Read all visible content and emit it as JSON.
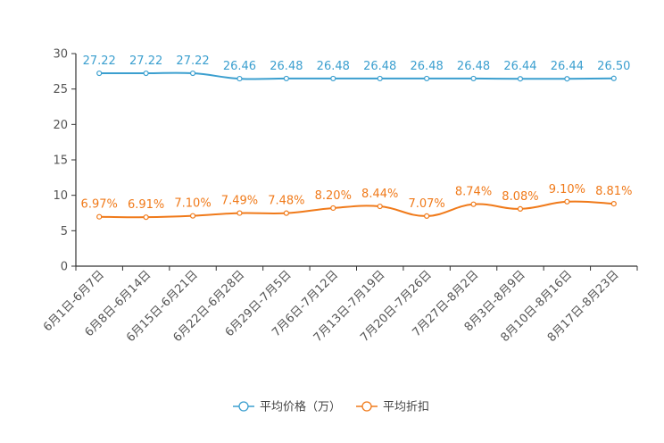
{
  "chart_data": {
    "type": "line",
    "title": "",
    "xlabel": "",
    "ylabel": "",
    "ylim": [
      0,
      30
    ],
    "yticks": [
      0,
      5,
      10,
      15,
      20,
      25,
      30
    ],
    "grid": false,
    "legend_position": "bottom-center",
    "categories": [
      "6月1日-6月7日",
      "6月8日-6月14日",
      "6月15日-6月21日",
      "6月22日-6月28日",
      "6月29日-7月5日",
      "7月6日-7月12日",
      "7月13日-7月19日",
      "7月20日-7月26日",
      "7月27日-8月2日",
      "8月3日-8月9日",
      "8月10日-8月16日",
      "8月17日-8月23日"
    ],
    "series": [
      {
        "name": "平均价格（万）",
        "color": "#3b9fcf",
        "values": [
          27.22,
          27.22,
          27.22,
          26.46,
          26.48,
          26.48,
          26.48,
          26.48,
          26.48,
          26.44,
          26.44,
          26.5
        ],
        "labels": [
          "27.22",
          "27.22",
          "27.22",
          "26.46",
          "26.48",
          "26.48",
          "26.48",
          "26.48",
          "26.48",
          "26.44",
          "26.44",
          "26.50"
        ]
      },
      {
        "name": "平均折扣",
        "color": "#f07a1a",
        "values": [
          6.97,
          6.91,
          7.1,
          7.49,
          7.48,
          8.2,
          8.44,
          7.07,
          8.74,
          8.08,
          9.1,
          8.81
        ],
        "labels": [
          "6.97%",
          "6.91%",
          "7.10%",
          "7.49%",
          "7.48%",
          "8.20%",
          "8.44%",
          "7.07%",
          "8.74%",
          "8.08%",
          "9.10%",
          "8.81%"
        ]
      }
    ]
  }
}
